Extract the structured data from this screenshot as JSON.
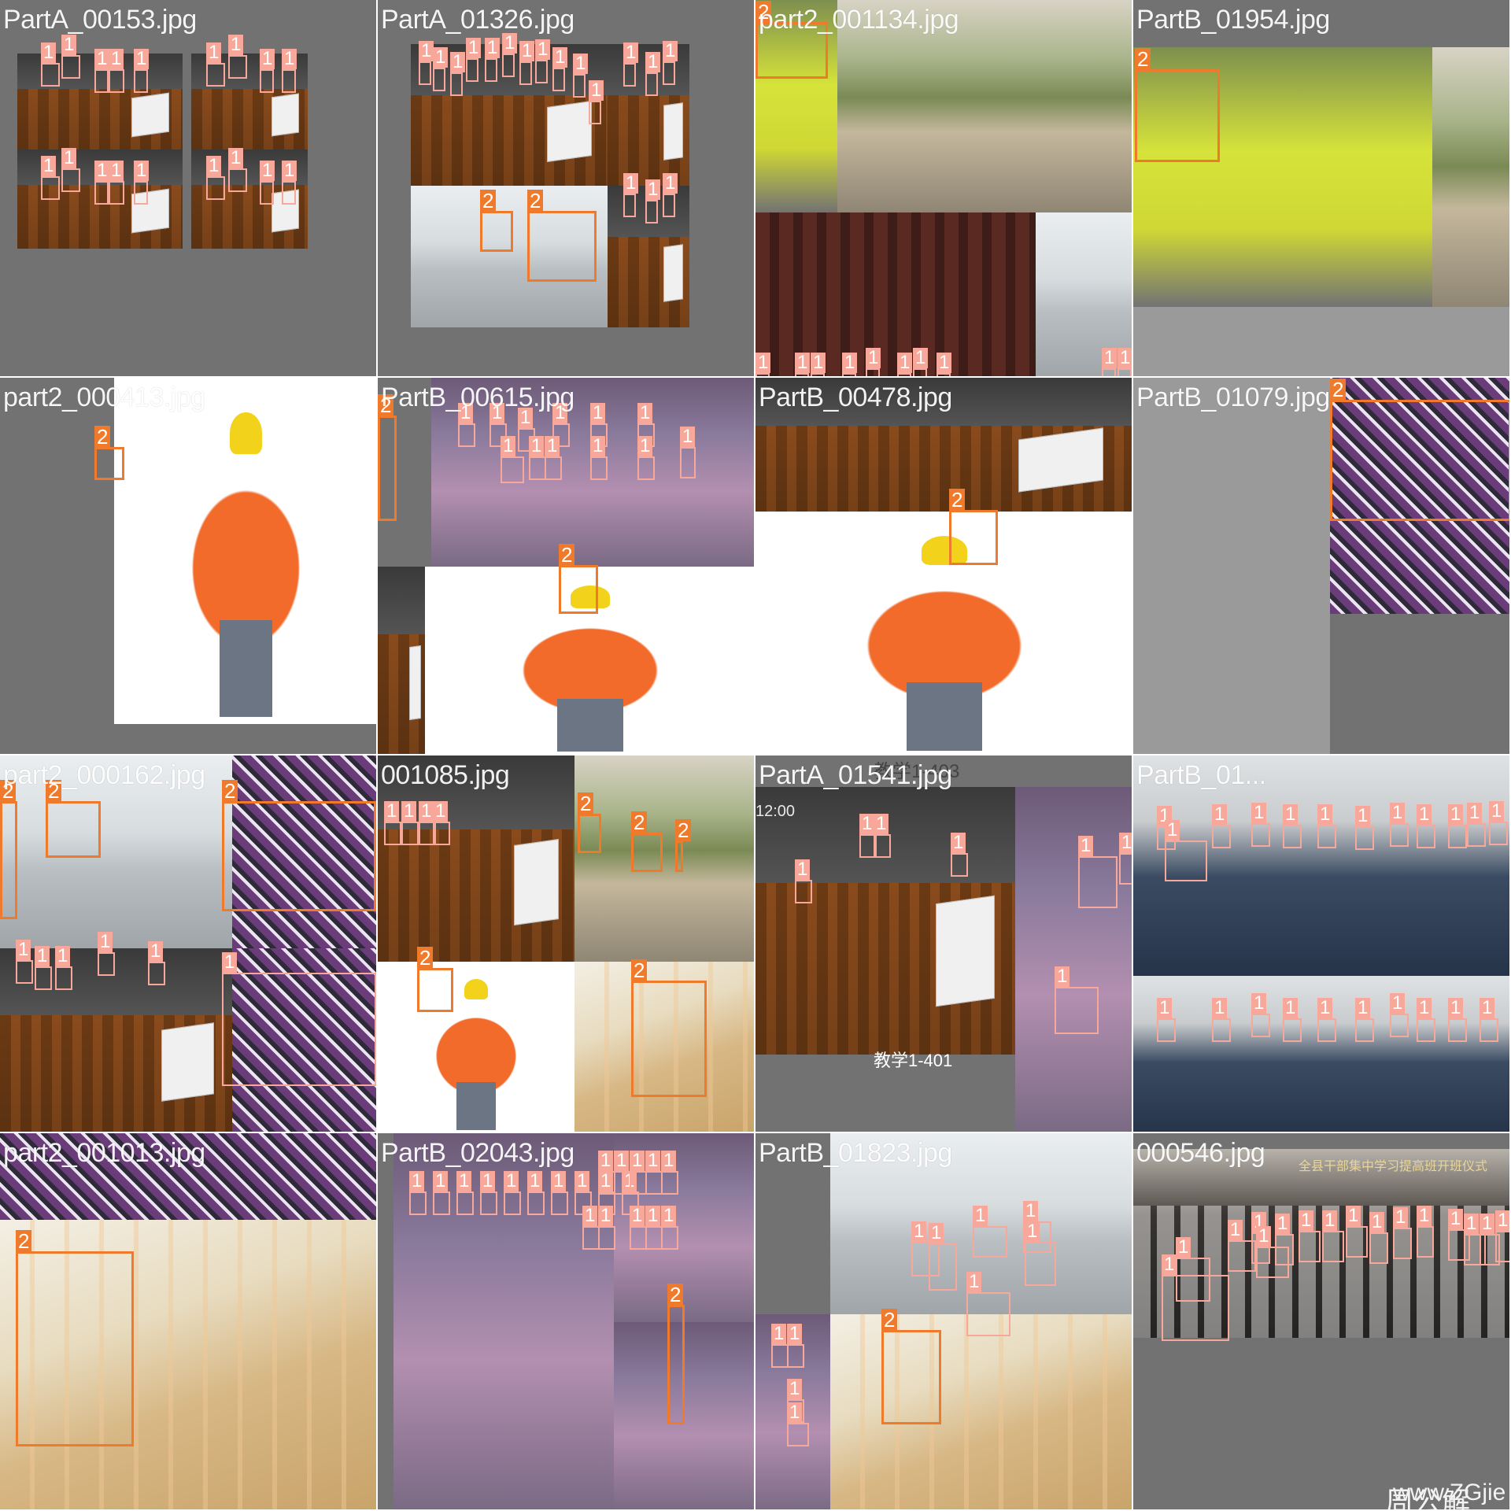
{
  "colors": {
    "class_1": "#f7a89a",
    "class_2": "#f07a2c",
    "tile_background": "#727272",
    "title_text": "#ffffff"
  },
  "tiles": [
    {
      "title": "PartA_00153.jpg",
      "patches": [
        {
          "k": "classroom"
        },
        {
          "k": "classroom"
        },
        {
          "k": "classroom"
        },
        {
          "k": "classroom"
        }
      ],
      "boxes": [
        {
          "c": "1"
        },
        {
          "c": "1"
        },
        {
          "c": "1"
        },
        {
          "c": "1"
        },
        {
          "c": "1"
        },
        {
          "c": "1"
        },
        {
          "c": "1"
        },
        {
          "c": "1"
        },
        {
          "c": "1"
        },
        {
          "c": "1"
        },
        {
          "c": "1"
        },
        {
          "c": "1"
        },
        {
          "c": "1"
        },
        {
          "c": "1"
        },
        {
          "c": "1"
        },
        {
          "c": "1"
        },
        {
          "c": "1"
        },
        {
          "c": "1"
        }
      ]
    },
    {
      "title": "PartA_01326.jpg",
      "patches": [
        {
          "k": "classroom"
        },
        {
          "k": "classroom"
        },
        {
          "k": "office"
        },
        {
          "k": "classroom"
        }
      ],
      "boxes": [
        {
          "c": "1"
        },
        {
          "c": "1"
        },
        {
          "c": "1"
        },
        {
          "c": "1"
        },
        {
          "c": "1"
        },
        {
          "c": "1"
        },
        {
          "c": "1"
        },
        {
          "c": "1"
        },
        {
          "c": "1"
        },
        {
          "c": "1"
        },
        {
          "c": "1"
        },
        {
          "c": "1"
        },
        {
          "c": "1"
        },
        {
          "c": "1"
        },
        {
          "c": "1"
        },
        {
          "c": "1"
        },
        {
          "c": "1"
        },
        {
          "c": "2"
        },
        {
          "c": "2"
        }
      ]
    },
    {
      "title": "part2_001134.jpg",
      "patches": [
        {
          "k": "vest"
        },
        {
          "k": "outdoor"
        },
        {
          "k": "curtain"
        },
        {
          "k": "office"
        }
      ],
      "boxes": [
        {
          "c": "2"
        },
        {
          "c": "1"
        },
        {
          "c": "1"
        },
        {
          "c": "1"
        },
        {
          "c": "1"
        },
        {
          "c": "1"
        },
        {
          "c": "1"
        },
        {
          "c": "1"
        },
        {
          "c": "1"
        },
        {
          "c": "1"
        },
        {
          "c": "1"
        }
      ]
    },
    {
      "title": "PartB_01954.jpg",
      "patches": [
        {
          "k": "vest"
        },
        {
          "k": "outdoor"
        },
        {
          "k": "gray"
        }
      ],
      "boxes": [
        {
          "c": "2"
        }
      ]
    },
    {
      "title": "part2_000413.jpg",
      "patches": [
        {
          "k": "worker"
        }
      ],
      "boxes": [
        {
          "c": "2"
        }
      ]
    },
    {
      "title": "PartB_00615.jpg",
      "patches": [
        {
          "k": "group"
        },
        {
          "k": "worker"
        },
        {
          "k": "classroom"
        }
      ],
      "boxes": [
        {
          "c": "2"
        },
        {
          "c": "1"
        },
        {
          "c": "1"
        },
        {
          "c": "1"
        },
        {
          "c": "1"
        },
        {
          "c": "1"
        },
        {
          "c": "1"
        },
        {
          "c": "1"
        },
        {
          "c": "1"
        },
        {
          "c": "1"
        },
        {
          "c": "1"
        },
        {
          "c": "1"
        },
        {
          "c": "1"
        },
        {
          "c": "2"
        },
        {
          "c": "1"
        }
      ]
    },
    {
      "title": "PartB_00478.jpg",
      "patches": [
        {
          "k": "classroom"
        },
        {
          "k": "worker"
        }
      ],
      "boxes": [
        {
          "c": "2"
        }
      ]
    },
    {
      "title": "PartB_01079.jpg",
      "patches": [
        {
          "k": "gray"
        },
        {
          "k": "plaid"
        }
      ],
      "boxes": [
        {
          "c": "2"
        }
      ]
    },
    {
      "title": "part2_000162.jpg",
      "patches": [
        {
          "k": "office"
        },
        {
          "k": "plaid"
        },
        {
          "k": "classroom"
        },
        {
          "k": "plaid"
        }
      ],
      "boxes": [
        {
          "c": "2"
        },
        {
          "c": "2"
        },
        {
          "c": "2"
        },
        {
          "c": "1"
        },
        {
          "c": "1"
        },
        {
          "c": "1"
        },
        {
          "c": "1"
        },
        {
          "c": "1"
        },
        {
          "c": "1"
        },
        {
          "c": "2"
        }
      ]
    },
    {
      "title": "001085.jpg",
      "patches": [
        {
          "k": "classroom"
        },
        {
          "k": "outdoor"
        },
        {
          "k": "worker"
        },
        {
          "k": "construction"
        }
      ],
      "boxes": [
        {
          "c": "1"
        },
        {
          "c": "1"
        },
        {
          "c": "1"
        },
        {
          "c": "1"
        },
        {
          "c": "2"
        },
        {
          "c": "2"
        },
        {
          "c": "2"
        },
        {
          "c": "2"
        },
        {
          "c": "2"
        }
      ]
    },
    {
      "title": "PartA_01541.jpg",
      "patches": [
        {
          "k": "classroom"
        },
        {
          "k": "group"
        }
      ],
      "boxes": [
        {
          "c": "1"
        },
        {
          "c": "1"
        },
        {
          "c": "1"
        },
        {
          "c": "1"
        },
        {
          "c": "1"
        },
        {
          "c": "1"
        },
        {
          "c": "1"
        }
      ],
      "overlay_text": [
        "教学1-403",
        "12:00",
        "教学1-401"
      ]
    },
    {
      "title": "PartB_01...",
      "patches": [
        {
          "k": "meeting"
        },
        {
          "k": "meeting"
        }
      ],
      "boxes": [
        {
          "c": "1"
        },
        {
          "c": "1"
        },
        {
          "c": "1"
        },
        {
          "c": "1"
        },
        {
          "c": "1"
        },
        {
          "c": "1"
        },
        {
          "c": "1"
        },
        {
          "c": "1"
        },
        {
          "c": "1"
        },
        {
          "c": "1"
        },
        {
          "c": "1"
        },
        {
          "c": "1"
        },
        {
          "c": "1"
        },
        {
          "c": "1"
        },
        {
          "c": "1"
        },
        {
          "c": "1"
        },
        {
          "c": "1"
        },
        {
          "c": "1"
        },
        {
          "c": "1"
        },
        {
          "c": "1"
        },
        {
          "c": "1"
        },
        {
          "c": "1"
        }
      ]
    },
    {
      "title": "part2_001013.jpg",
      "patches": [
        {
          "k": "plaid"
        },
        {
          "k": "construction"
        }
      ],
      "boxes": [
        {
          "c": "2"
        }
      ]
    },
    {
      "title": "PartB_02043.jpg",
      "patches": [
        {
          "k": "group"
        },
        {
          "k": "group"
        },
        {
          "k": "group"
        },
        {
          "k": "construction"
        }
      ],
      "boxes": [
        {
          "c": "1"
        },
        {
          "c": "1"
        },
        {
          "c": "1"
        },
        {
          "c": "1"
        },
        {
          "c": "1"
        },
        {
          "c": "1"
        },
        {
          "c": "1"
        },
        {
          "c": "1"
        },
        {
          "c": "1"
        },
        {
          "c": "1"
        },
        {
          "c": "1"
        },
        {
          "c": "1"
        },
        {
          "c": "1"
        },
        {
          "c": "1"
        },
        {
          "c": "1"
        },
        {
          "c": "1"
        },
        {
          "c": "1"
        },
        {
          "c": "1"
        },
        {
          "c": "1"
        },
        {
          "c": "1"
        },
        {
          "c": "2"
        }
      ]
    },
    {
      "title": "PartB_01823.jpg",
      "patches": [
        {
          "k": "office"
        },
        {
          "k": "group"
        },
        {
          "k": "construction"
        }
      ],
      "boxes": [
        {
          "c": "1"
        },
        {
          "c": "1"
        },
        {
          "c": "1"
        },
        {
          "c": "1"
        },
        {
          "c": "1"
        },
        {
          "c": "1"
        },
        {
          "c": "1"
        },
        {
          "c": "1"
        },
        {
          "c": "1"
        },
        {
          "c": "1"
        },
        {
          "c": "2"
        }
      ]
    },
    {
      "title": "000546.jpg",
      "patches": [
        {
          "k": "hall"
        }
      ],
      "boxes": [
        {
          "c": "1"
        },
        {
          "c": "1"
        },
        {
          "c": "1"
        },
        {
          "c": "1"
        },
        {
          "c": "1"
        },
        {
          "c": "1"
        },
        {
          "c": "1"
        },
        {
          "c": "1"
        },
        {
          "c": "1"
        },
        {
          "c": "1"
        },
        {
          "c": "1"
        },
        {
          "c": "1"
        },
        {
          "c": "1"
        },
        {
          "c": "1"
        },
        {
          "c": "1"
        },
        {
          "c": "1"
        }
      ],
      "overlay_text": [
        "全县干部集中学习提高班开班仪式",
        "周公解",
        "www.ZGjie"
      ]
    }
  ]
}
